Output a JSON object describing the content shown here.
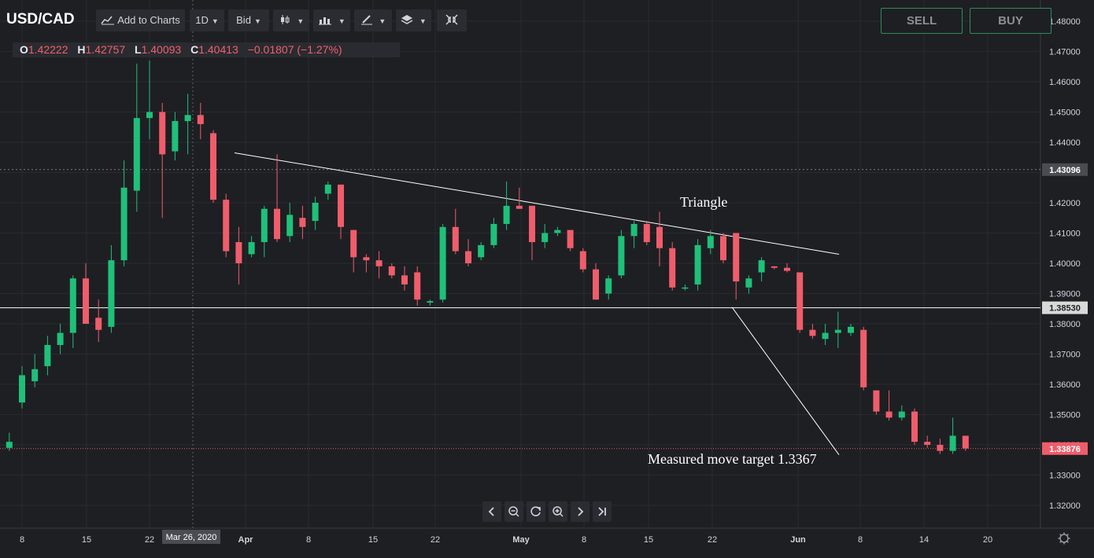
{
  "toolbar": {
    "symbol": "USD/CAD",
    "add_to_charts": "Add to Charts",
    "interval": "1D",
    "price_type": "Bid",
    "icons": [
      "chart-plus-icon",
      "candles-icon",
      "indicators-icon",
      "drawing-pen-icon",
      "layers-icon",
      "collapse-icon"
    ]
  },
  "trade": {
    "sell_label": "SELL",
    "buy_label": "BUY"
  },
  "ohlc": {
    "o_key": "O",
    "o": "1.42222",
    "h_key": "H",
    "h": "1.42757",
    "l_key": "L",
    "l": "1.40093",
    "c_key": "C",
    "c": "1.40413",
    "change": "−0.01807 (−1.27%)"
  },
  "annotations": {
    "triangle": "Triangle",
    "target": "Measured move target 1.3367"
  },
  "price_labels": {
    "crosshair": "1.43096",
    "level": "1.38530",
    "last": "1.33876"
  },
  "crosshair_date": "Mar 26, 2020",
  "navigation": [
    "scroll-left-icon",
    "zoom-out-icon",
    "reset-icon",
    "zoom-in-icon",
    "scroll-right-icon",
    "scroll-to-end-icon"
  ],
  "colors": {
    "background": "#1e1f23",
    "up": "#1fc07a",
    "down": "#ef5d6b",
    "border_green": "#2f8c5b",
    "last_price": "#ef5d6b"
  },
  "chart_data": {
    "type": "candlestick",
    "title": "USD/CAD",
    "y_ticks": [
      "1.48000",
      "1.47000",
      "1.46000",
      "1.45000",
      "1.44000",
      "1.43000",
      "1.42000",
      "1.41000",
      "1.40000",
      "1.39000",
      "1.38000",
      "1.37000",
      "1.36000",
      "1.35000",
      "1.34000",
      "1.33000",
      "1.32000"
    ],
    "x_ticks": [
      "8",
      "15",
      "22",
      "Apr",
      "8",
      "15",
      "22",
      "May",
      "8",
      "15",
      "22",
      "Jun",
      "8",
      "14",
      "20"
    ],
    "horizontal_level": 1.3853,
    "crosshair_price": 1.43096,
    "last_price": 1.33876,
    "triangle_upper_line": [
      {
        "x": "2020-03-27",
        "y": 1.4365
      },
      {
        "x": "2020-06-05",
        "y": 1.403
      }
    ],
    "measured_move_line": [
      {
        "x": "2020-05-26",
        "y": 1.3855
      },
      {
        "x": "2020-06-08",
        "y": 1.3367
      }
    ],
    "candles": [
      {
        "x": "2020-03-05",
        "o": 1.34,
        "h": 1.344,
        "l": 1.3385,
        "c": 1.3395
      },
      {
        "x": "2020-03-06",
        "o": 1.339,
        "h": 1.344,
        "l": 1.338,
        "c": 1.341
      },
      {
        "x": "2020-03-09",
        "o": 1.354,
        "h": 1.366,
        "l": 1.352,
        "c": 1.363
      },
      {
        "x": "2020-03-10",
        "o": 1.361,
        "h": 1.37,
        "l": 1.359,
        "c": 1.365
      },
      {
        "x": "2020-03-11",
        "o": 1.366,
        "h": 1.376,
        "l": 1.363,
        "c": 1.373
      },
      {
        "x": "2020-03-12",
        "o": 1.373,
        "h": 1.38,
        "l": 1.37,
        "c": 1.377
      },
      {
        "x": "2020-03-13",
        "o": 1.377,
        "h": 1.396,
        "l": 1.372,
        "c": 1.395
      },
      {
        "x": "2020-03-16",
        "o": 1.395,
        "h": 1.4,
        "l": 1.38,
        "c": 1.38
      },
      {
        "x": "2020-03-17",
        "o": 1.382,
        "h": 1.388,
        "l": 1.374,
        "c": 1.378
      },
      {
        "x": "2020-03-18",
        "o": 1.379,
        "h": 1.406,
        "l": 1.377,
        "c": 1.401
      },
      {
        "x": "2020-03-19",
        "o": 1.401,
        "h": 1.434,
        "l": 1.399,
        "c": 1.425
      },
      {
        "x": "2020-03-20",
        "o": 1.424,
        "h": 1.466,
        "l": 1.417,
        "c": 1.448
      },
      {
        "x": "2020-03-23",
        "o": 1.448,
        "h": 1.467,
        "l": 1.441,
        "c": 1.45
      },
      {
        "x": "2020-03-24",
        "o": 1.45,
        "h": 1.453,
        "l": 1.415,
        "c": 1.436
      },
      {
        "x": "2020-03-25",
        "o": 1.437,
        "h": 1.45,
        "l": 1.434,
        "c": 1.447
      },
      {
        "x": "2020-03-26",
        "o": 1.447,
        "h": 1.456,
        "l": 1.436,
        "c": 1.449
      },
      {
        "x": "2020-03-27",
        "o": 1.449,
        "h": 1.453,
        "l": 1.441,
        "c": 1.446
      },
      {
        "x": "2020-03-30",
        "o": 1.443,
        "h": 1.444,
        "l": 1.42,
        "c": 1.421
      },
      {
        "x": "2020-03-31",
        "o": 1.421,
        "h": 1.423,
        "l": 1.402,
        "c": 1.404
      },
      {
        "x": "2020-04-01",
        "o": 1.407,
        "h": 1.412,
        "l": 1.393,
        "c": 1.4
      },
      {
        "x": "2020-04-02",
        "o": 1.403,
        "h": 1.409,
        "l": 1.402,
        "c": 1.407
      },
      {
        "x": "2020-04-03",
        "o": 1.407,
        "h": 1.419,
        "l": 1.402,
        "c": 1.418
      },
      {
        "x": "2020-04-06",
        "o": 1.418,
        "h": 1.436,
        "l": 1.407,
        "c": 1.408
      },
      {
        "x": "2020-04-07",
        "o": 1.409,
        "h": 1.42,
        "l": 1.407,
        "c": 1.416
      },
      {
        "x": "2020-04-08",
        "o": 1.415,
        "h": 1.419,
        "l": 1.408,
        "c": 1.412
      },
      {
        "x": "2020-04-09",
        "o": 1.414,
        "h": 1.422,
        "l": 1.411,
        "c": 1.42
      },
      {
        "x": "2020-04-10",
        "o": 1.423,
        "h": 1.427,
        "l": 1.421,
        "c": 1.426
      },
      {
        "x": "2020-04-13",
        "o": 1.426,
        "h": 1.426,
        "l": 1.408,
        "c": 1.412
      },
      {
        "x": "2020-04-14",
        "o": 1.411,
        "h": 1.411,
        "l": 1.397,
        "c": 1.402
      },
      {
        "x": "2020-04-15",
        "o": 1.402,
        "h": 1.403,
        "l": 1.397,
        "c": 1.401
      },
      {
        "x": "2020-04-16",
        "o": 1.401,
        "h": 1.404,
        "l": 1.395,
        "c": 1.399
      },
      {
        "x": "2020-04-17",
        "o": 1.399,
        "h": 1.4,
        "l": 1.395,
        "c": 1.396
      },
      {
        "x": "2020-04-20",
        "o": 1.396,
        "h": 1.399,
        "l": 1.391,
        "c": 1.393
      },
      {
        "x": "2020-04-21",
        "o": 1.397,
        "h": 1.399,
        "l": 1.386,
        "c": 1.388
      },
      {
        "x": "2020-04-22",
        "o": 1.387,
        "h": 1.388,
        "l": 1.386,
        "c": 1.3875
      },
      {
        "x": "2020-04-23",
        "o": 1.388,
        "h": 1.413,
        "l": 1.387,
        "c": 1.412
      },
      {
        "x": "2020-04-24",
        "o": 1.412,
        "h": 1.418,
        "l": 1.403,
        "c": 1.404
      },
      {
        "x": "2020-04-27",
        "o": 1.404,
        "h": 1.408,
        "l": 1.399,
        "c": 1.4
      },
      {
        "x": "2020-04-28",
        "o": 1.402,
        "h": 1.407,
        "l": 1.401,
        "c": 1.406
      },
      {
        "x": "2020-04-29",
        "o": 1.406,
        "h": 1.415,
        "l": 1.405,
        "c": 1.413
      },
      {
        "x": "2020-04-30",
        "o": 1.413,
        "h": 1.427,
        "l": 1.411,
        "c": 1.419
      },
      {
        "x": "2020-05-01",
        "o": 1.419,
        "h": 1.425,
        "l": 1.418,
        "c": 1.418
      },
      {
        "x": "2020-05-04",
        "o": 1.419,
        "h": 1.419,
        "l": 1.401,
        "c": 1.407
      },
      {
        "x": "2020-05-05",
        "o": 1.407,
        "h": 1.413,
        "l": 1.405,
        "c": 1.41
      },
      {
        "x": "2020-05-06",
        "o": 1.41,
        "h": 1.412,
        "l": 1.409,
        "c": 1.411
      },
      {
        "x": "2020-05-07",
        "o": 1.411,
        "h": 1.411,
        "l": 1.404,
        "c": 1.405
      },
      {
        "x": "2020-05-08",
        "o": 1.404,
        "h": 1.405,
        "l": 1.397,
        "c": 1.398
      },
      {
        "x": "2020-05-11",
        "o": 1.398,
        "h": 1.4,
        "l": 1.388,
        "c": 1.388
      },
      {
        "x": "2020-05-12",
        "o": 1.39,
        "h": 1.396,
        "l": 1.388,
        "c": 1.395
      },
      {
        "x": "2020-05-13",
        "o": 1.396,
        "h": 1.411,
        "l": 1.395,
        "c": 1.409
      },
      {
        "x": "2020-05-14",
        "o": 1.409,
        "h": 1.414,
        "l": 1.405,
        "c": 1.413
      },
      {
        "x": "2020-05-15",
        "o": 1.413,
        "h": 1.414,
        "l": 1.406,
        "c": 1.407
      },
      {
        "x": "2020-05-18",
        "o": 1.412,
        "h": 1.417,
        "l": 1.399,
        "c": 1.405
      },
      {
        "x": "2020-05-19",
        "o": 1.405,
        "h": 1.407,
        "l": 1.391,
        "c": 1.392
      },
      {
        "x": "2020-05-20",
        "o": 1.392,
        "h": 1.393,
        "l": 1.391,
        "c": 1.392
      },
      {
        "x": "2020-05-21",
        "o": 1.393,
        "h": 1.408,
        "l": 1.391,
        "c": 1.406
      },
      {
        "x": "2020-05-22",
        "o": 1.405,
        "h": 1.411,
        "l": 1.403,
        "c": 1.409
      },
      {
        "x": "2020-05-25",
        "o": 1.409,
        "h": 1.41,
        "l": 1.4,
        "c": 1.401
      },
      {
        "x": "2020-05-26",
        "o": 1.41,
        "h": 1.41,
        "l": 1.388,
        "c": 1.394
      },
      {
        "x": "2020-05-27",
        "o": 1.392,
        "h": 1.396,
        "l": 1.39,
        "c": 1.395
      },
      {
        "x": "2020-05-28",
        "o": 1.397,
        "h": 1.402,
        "l": 1.394,
        "c": 1.401
      },
      {
        "x": "2020-05-29",
        "o": 1.399,
        "h": 1.399,
        "l": 1.398,
        "c": 1.3985
      },
      {
        "x": "2020-06-01",
        "o": 1.3985,
        "h": 1.4,
        "l": 1.397,
        "c": 1.3975
      },
      {
        "x": "2020-06-02",
        "o": 1.397,
        "h": 1.397,
        "l": 1.377,
        "c": 1.378
      },
      {
        "x": "2020-06-03",
        "o": 1.378,
        "h": 1.38,
        "l": 1.375,
        "c": 1.376
      },
      {
        "x": "2020-06-04",
        "o": 1.375,
        "h": 1.38,
        "l": 1.373,
        "c": 1.377
      },
      {
        "x": "2020-06-05",
        "o": 1.377,
        "h": 1.384,
        "l": 1.372,
        "c": 1.378
      },
      {
        "x": "2020-06-08",
        "o": 1.377,
        "h": 1.38,
        "l": 1.376,
        "c": 1.379
      },
      {
        "x": "2020-06-09",
        "o": 1.378,
        "h": 1.379,
        "l": 1.358,
        "c": 1.359
      },
      {
        "x": "2020-06-10",
        "o": 1.358,
        "h": 1.358,
        "l": 1.35,
        "c": 1.351
      },
      {
        "x": "2020-06-11",
        "o": 1.351,
        "h": 1.358,
        "l": 1.348,
        "c": 1.349
      },
      {
        "x": "2020-06-12",
        "o": 1.349,
        "h": 1.353,
        "l": 1.348,
        "c": 1.351
      },
      {
        "x": "2020-06-15",
        "o": 1.351,
        "h": 1.352,
        "l": 1.34,
        "c": 1.341
      },
      {
        "x": "2020-06-16",
        "o": 1.341,
        "h": 1.343,
        "l": 1.339,
        "c": 1.34
      },
      {
        "x": "2020-06-17",
        "o": 1.34,
        "h": 1.342,
        "l": 1.337,
        "c": 1.338
      },
      {
        "x": "2020-06-18",
        "o": 1.338,
        "h": 1.349,
        "l": 1.337,
        "c": 1.343
      },
      {
        "x": "2020-06-19",
        "o": 1.343,
        "h": 1.343,
        "l": 1.338,
        "c": 1.3388
      }
    ]
  }
}
